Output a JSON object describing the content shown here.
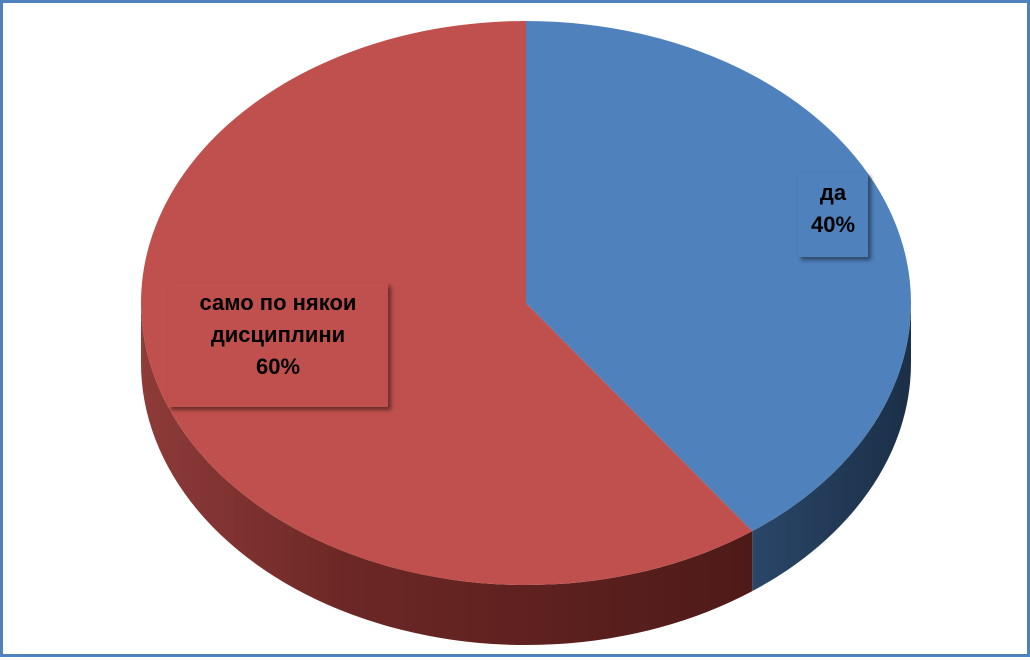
{
  "chart_data": {
    "type": "pie",
    "title": "",
    "slices": [
      {
        "label": "да",
        "value": 40,
        "percent_text": "40%",
        "color": "#4f81bd",
        "side_color": "#1f3550"
      },
      {
        "label": "само по някои дисциплини",
        "label_lines": [
          "само по някои",
          "дисциплини"
        ],
        "value": 60,
        "percent_text": "60%",
        "color": "#c0504d",
        "side_color": "#5a1e1c"
      }
    ],
    "start_angle_deg": 0,
    "direction": "clockwise",
    "style": "3d",
    "legend": "none"
  }
}
